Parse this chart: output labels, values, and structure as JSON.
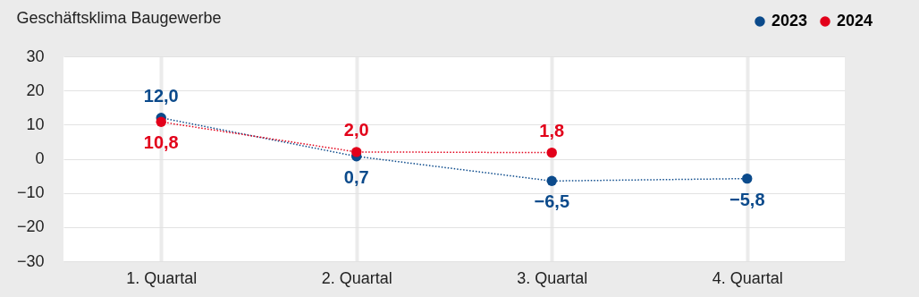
{
  "chart_data": {
    "type": "line",
    "title": "Geschäftsklima Baugewerbe",
    "categories": [
      "1. Quartal",
      "2. Quartal",
      "3. Quartal",
      "4. Quartal"
    ],
    "series": [
      {
        "name": "2023",
        "color": "#0b4a8b",
        "values": [
          12.0,
          0.7,
          -6.5,
          -5.8
        ],
        "value_labels": [
          "12,0",
          "0,7",
          "−6,5",
          "−5,8"
        ]
      },
      {
        "name": "2024",
        "color": "#e2001a",
        "values": [
          10.8,
          2.0,
          1.8,
          null
        ],
        "value_labels": [
          "10,8",
          "2,0",
          "1,8",
          null
        ]
      }
    ],
    "ylim": [
      -30,
      30
    ],
    "yticks": [
      -30,
      -20,
      -10,
      0,
      10,
      20,
      30
    ],
    "grid": true,
    "legend": "top right",
    "marker": "circle",
    "line_style": "dotted"
  }
}
